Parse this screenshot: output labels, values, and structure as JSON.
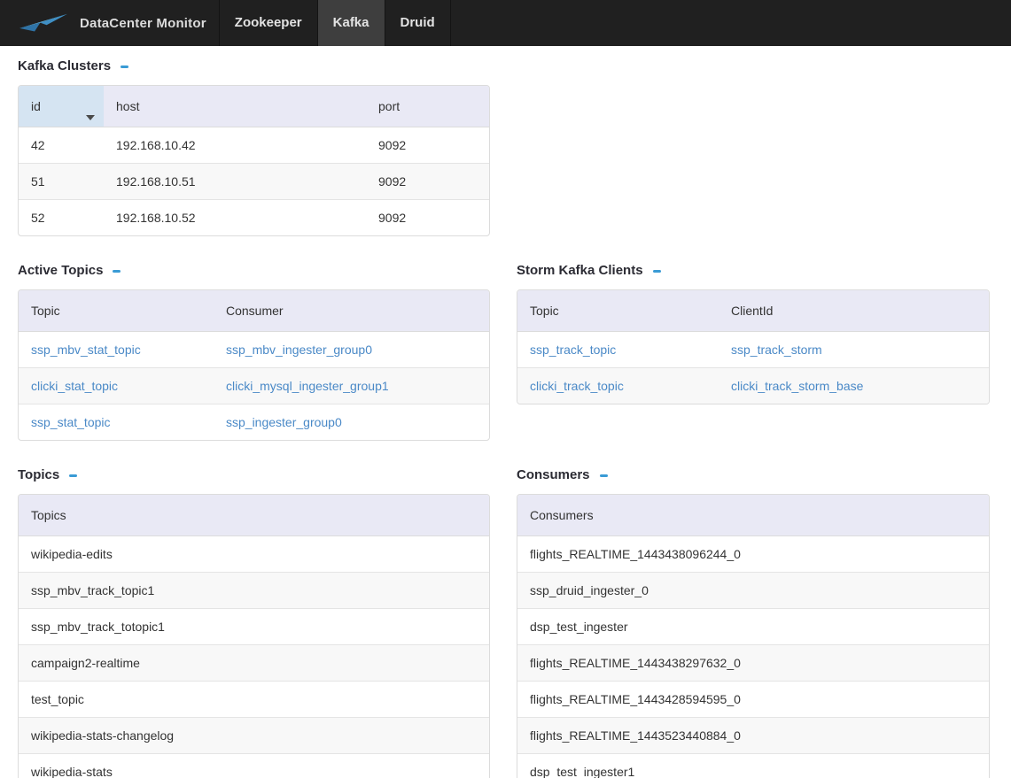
{
  "navbar": {
    "brand": "DataCenter Monitor",
    "tabs": [
      {
        "label": "Zookeeper",
        "active": false
      },
      {
        "label": "Kafka",
        "active": true
      },
      {
        "label": "Druid",
        "active": false
      }
    ]
  },
  "icons": {
    "logo-icon": "paper-plane-swoosh",
    "collapse-icon": "minus-dash",
    "sort-descending-icon": "triangle-down"
  },
  "colors": {
    "navbar_bg": "#202020",
    "navbar_active_tab_bg": "#3e3e3e",
    "accent_blue": "#3a9bd5",
    "link_blue": "#4a89c7",
    "table_header_bg": "#e9e9f5",
    "sorted_header_bg": "#d5e4f2",
    "border": "#dcdcdc",
    "text": "#333333"
  },
  "sections": {
    "kafka_clusters": {
      "title": "Kafka Clusters",
      "columns": [
        "id",
        "host",
        "port"
      ],
      "sorted_column": 0,
      "sort_direction": "desc",
      "cells_are_links": false,
      "rows": [
        [
          "42",
          "192.168.10.42",
          "9092"
        ],
        [
          "51",
          "192.168.10.51",
          "9092"
        ],
        [
          "52",
          "192.168.10.52",
          "9092"
        ]
      ]
    },
    "active_topics": {
      "title": "Active Topics",
      "columns": [
        "Topic",
        "Consumer"
      ],
      "cells_are_links": true,
      "rows": [
        [
          "ssp_mbv_stat_topic",
          "ssp_mbv_ingester_group0"
        ],
        [
          "clicki_stat_topic",
          "clicki_mysql_ingester_group1"
        ],
        [
          "ssp_stat_topic",
          "ssp_ingester_group0"
        ]
      ]
    },
    "storm_kafka_clients": {
      "title": "Storm Kafka Clients",
      "columns": [
        "Topic",
        "ClientId"
      ],
      "cells_are_links": true,
      "rows": [
        [
          "ssp_track_topic",
          "ssp_track_storm"
        ],
        [
          "clicki_track_topic",
          "clicki_track_storm_base"
        ]
      ]
    },
    "topics": {
      "title": "Topics",
      "columns": [
        "Topics"
      ],
      "cells_are_links": false,
      "rows": [
        "wikipedia-edits",
        "ssp_mbv_track_topic1",
        "ssp_mbv_track_totopic1",
        "campaign2-realtime",
        "test_topic",
        "wikipedia-stats-changelog",
        "wikipedia-stats"
      ]
    },
    "consumers": {
      "title": "Consumers",
      "columns": [
        "Consumers"
      ],
      "cells_are_links": false,
      "rows": [
        "flights_REALTIME_1443438096244_0",
        "ssp_druid_ingester_0",
        "dsp_test_ingester",
        "flights_REALTIME_1443438297632_0",
        "flights_REALTIME_1443428594595_0",
        "flights_REALTIME_1443523440884_0",
        "dsp_test_ingester1"
      ]
    }
  }
}
